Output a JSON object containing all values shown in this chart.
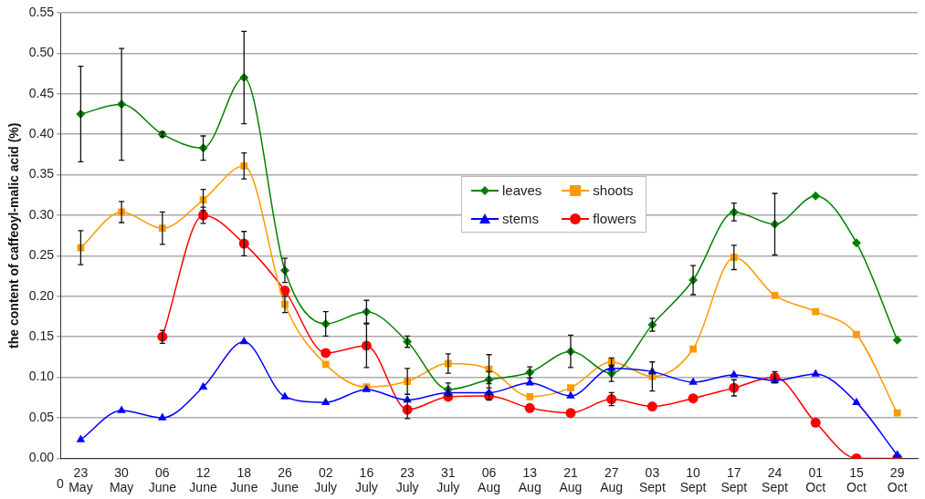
{
  "chart_data": {
    "type": "line",
    "ylabel": "the content of caffeoyl-malic acid (%)",
    "categories": [
      "23 May",
      "30 May",
      "06 June",
      "12 June",
      "18 June",
      "26 June",
      "02 July",
      "16 July",
      "23 July",
      "31 July",
      "06 Aug",
      "13 Aug",
      "21 Aug",
      "27 Aug",
      "03 Sept",
      "10 Sept",
      "17 Sept",
      "24 Sept",
      "01 Oct",
      "15 Oct",
      "29 Oct"
    ],
    "series": [
      {
        "name": "leaves",
        "color": "#008000",
        "marker": "diamond",
        "values": [
          0.425,
          0.437,
          0.4,
          0.383,
          0.47,
          0.232,
          0.166,
          0.181,
          0.144,
          0.085,
          0.097,
          0.106,
          0.132,
          0.105,
          0.165,
          0.22,
          0.304,
          0.289,
          0.324,
          0.266,
          0.146
        ],
        "errors": [
          0.059,
          0.069,
          0.003,
          0.015,
          0.057,
          0.015,
          0.015,
          0.014,
          0.007,
          0.008,
          0.01,
          0.007,
          0.02,
          0.01,
          0.008,
          0.018,
          0.011,
          0.038,
          null,
          null,
          null
        ]
      },
      {
        "name": "shoots",
        "color": "#ff9900",
        "marker": "square",
        "values": [
          0.26,
          0.304,
          0.284,
          0.319,
          0.361,
          0.19,
          0.116,
          0.088,
          0.095,
          0.117,
          0.11,
          0.076,
          0.087,
          0.119,
          0.101,
          0.135,
          0.248,
          0.201,
          0.181,
          0.153,
          0.056
        ],
        "errors": [
          0.021,
          0.013,
          0.02,
          0.013,
          0.016,
          0.01,
          null,
          null,
          0.016,
          0.012,
          0.018,
          null,
          null,
          0.005,
          0.018,
          null,
          0.015,
          null,
          null,
          null,
          null
        ]
      },
      {
        "name": "stems",
        "color": "#0000ff",
        "marker": "triangle",
        "values": [
          0.023,
          0.059,
          0.05,
          0.088,
          0.144,
          0.076,
          0.069,
          0.085,
          0.072,
          0.081,
          0.081,
          0.093,
          0.077,
          0.111,
          0.107,
          0.094,
          0.103,
          0.096,
          0.104,
          0.069,
          0.004
        ],
        "errors": [
          null,
          null,
          null,
          null,
          null,
          null,
          null,
          null,
          null,
          null,
          null,
          null,
          null,
          null,
          null,
          null,
          null,
          null,
          null,
          null,
          null
        ]
      },
      {
        "name": "flowers",
        "color": "#ff0000",
        "marker": "circle",
        "values": [
          null,
          null,
          0.15,
          0.3,
          0.265,
          0.207,
          0.13,
          0.139,
          0.06,
          0.076,
          0.077,
          0.062,
          0.056,
          0.073,
          0.064,
          0.074,
          0.087,
          0.1,
          0.044,
          0.0,
          0.0
        ],
        "errors": [
          null,
          null,
          0.008,
          0.01,
          0.015,
          null,
          null,
          0.027,
          0.011,
          null,
          0.005,
          null,
          null,
          0.008,
          null,
          null,
          0.01,
          0.007,
          null,
          null,
          null
        ]
      }
    ],
    "ylim": [
      0,
      0.55
    ],
    "yticks": [
      {
        "value": 0,
        "label": "0.00"
      },
      {
        "value": 0.05,
        "label": "0.05"
      },
      {
        "value": 0.1,
        "label": "0.10"
      },
      {
        "value": 0.15,
        "label": "0.15"
      },
      {
        "value": 0.2,
        "label": "0.20"
      },
      {
        "value": 0.25,
        "label": "0.25"
      },
      {
        "value": 0.3,
        "label": "0.30"
      },
      {
        "value": 0.35,
        "label": "0.35"
      },
      {
        "value": 0.4,
        "label": "0.40"
      },
      {
        "value": 0.45,
        "label": "0.45"
      },
      {
        "value": 0.5,
        "label": "0.50"
      },
      {
        "value": 0.55,
        "label": "0.55"
      }
    ],
    "grid": "y",
    "legend": "top right",
    "line_style": "solid",
    "annotations": [
      "0"
    ]
  }
}
